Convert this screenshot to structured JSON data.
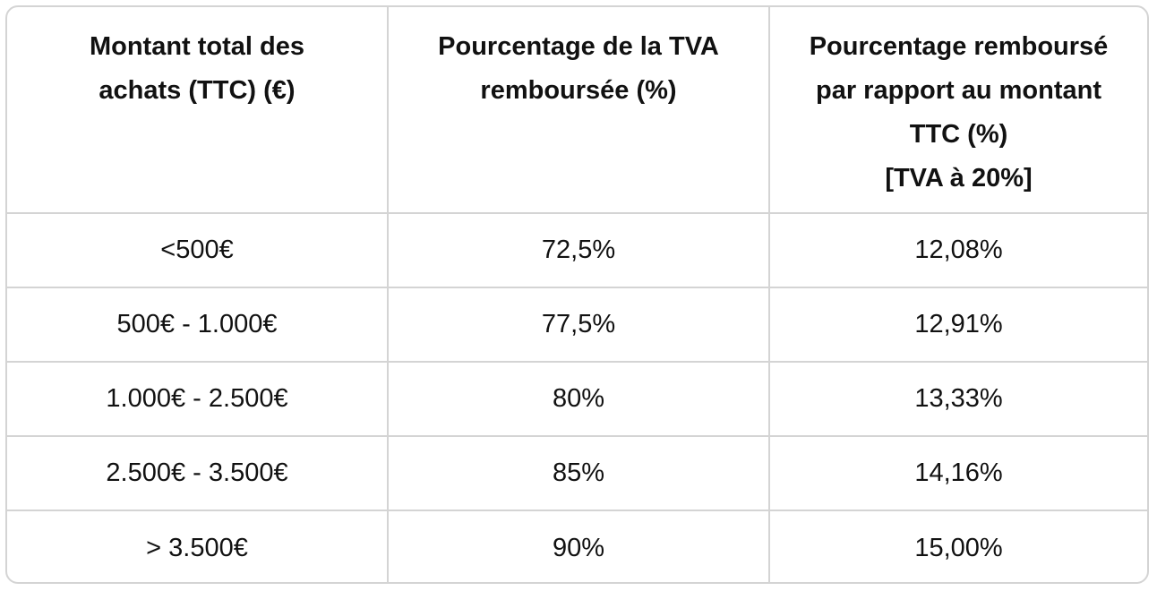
{
  "table": {
    "headers": [
      {
        "lines": [
          "Montant total des",
          "achats (TTC) (€)"
        ]
      },
      {
        "lines": [
          "Pourcentage de la TVA",
          "remboursée (%)"
        ]
      },
      {
        "lines": [
          "Pourcentage remboursé",
          "par rapport au montant",
          "TTC (%)",
          "[TVA à 20%]"
        ]
      }
    ],
    "rows": [
      [
        "<500€",
        "72,5%",
        "12,08%"
      ],
      [
        "500€ - 1.000€",
        "77,5%",
        "12,91%"
      ],
      [
        "1.000€ - 2.500€",
        "80%",
        "13,33%"
      ],
      [
        "2.500€ - 3.500€",
        "85%",
        "14,16%"
      ],
      [
        "> 3.500€",
        "90%",
        "15,00%"
      ]
    ]
  }
}
